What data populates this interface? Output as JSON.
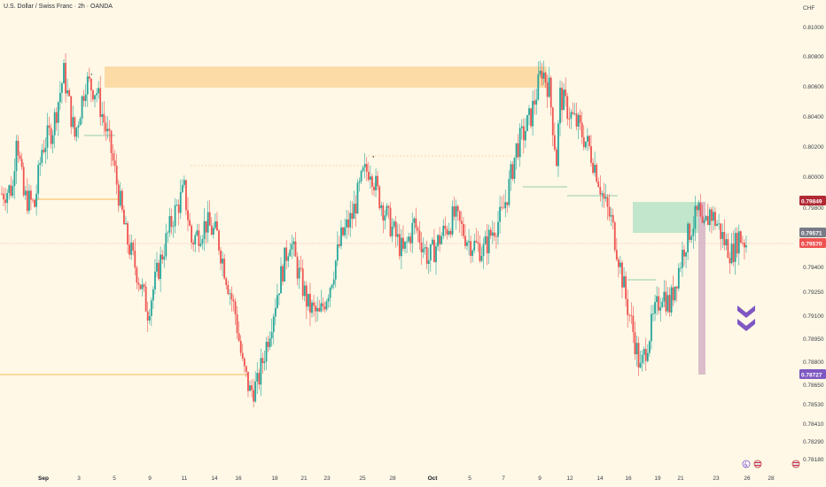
{
  "header": {
    "title": "U.S. Dollar / Swiss Franc · 2h · OANDA",
    "currency": "CHF"
  },
  "chart_data": {
    "type": "candlestick",
    "symbol": "USDCHF",
    "timeframe": "2h",
    "ylim": [
      0.7812,
      0.8112
    ],
    "y_ticks": [
      "0.81000",
      "0.80800",
      "0.80600",
      "0.80400",
      "0.80200",
      "0.80000",
      "0.79800",
      "0.79400",
      "0.79250",
      "0.79100",
      "0.78950",
      "0.78800",
      "0.78650",
      "0.78530",
      "0.78410",
      "0.78290",
      "0.78180"
    ],
    "x_ticks": [
      {
        "label": "Sep",
        "bold": true
      },
      {
        "label": "3"
      },
      {
        "label": "5"
      },
      {
        "label": "9"
      },
      {
        "label": "11"
      },
      {
        "label": "14"
      },
      {
        "label": "16"
      },
      {
        "label": "18"
      },
      {
        "label": "21"
      },
      {
        "label": "23"
      },
      {
        "label": "25"
      },
      {
        "label": "28"
      },
      {
        "label": "Oct",
        "bold": true
      },
      {
        "label": "5"
      },
      {
        "label": "7"
      },
      {
        "label": "9"
      },
      {
        "label": "12"
      },
      {
        "label": "14"
      },
      {
        "label": "16"
      },
      {
        "label": "19"
      },
      {
        "label": "21"
      },
      {
        "label": "23"
      },
      {
        "label": "26"
      },
      {
        "label": "28"
      }
    ],
    "price_badges": [
      {
        "label": "0.79849",
        "color": "#b22833"
      },
      {
        "label": "0.79571",
        "color": "#787b86"
      },
      {
        "label": "0.79570",
        "color": "#ef5350"
      },
      {
        "label": "0.78727",
        "color": "#7e57c2"
      }
    ],
    "price_path": [
      [
        0.799,
        0
      ],
      [
        0.7994,
        3
      ],
      [
        0.8032,
        4
      ],
      [
        0.7988,
        6
      ],
      [
        0.7982,
        9
      ],
      [
        0.802,
        11
      ],
      [
        0.8034,
        14
      ],
      [
        0.807,
        17
      ],
      [
        0.8028,
        20
      ],
      [
        0.8065,
        23
      ],
      [
        0.8058,
        26
      ],
      [
        0.8018,
        30
      ],
      [
        0.7962,
        34
      ],
      [
        0.7938,
        37
      ],
      [
        0.7912,
        40
      ],
      [
        0.795,
        44
      ],
      [
        0.7975,
        47
      ],
      [
        0.7992,
        50
      ],
      [
        0.7958,
        52
      ],
      [
        0.797,
        56
      ],
      [
        0.7962,
        59
      ],
      [
        0.793,
        62
      ],
      [
        0.791,
        64
      ],
      [
        0.7875,
        66
      ],
      [
        0.7858,
        68
      ],
      [
        0.7862,
        70
      ],
      [
        0.7895,
        73
      ],
      [
        0.793,
        76
      ],
      [
        0.796,
        79
      ],
      [
        0.794,
        81
      ],
      [
        0.7915,
        84
      ],
      [
        0.7908,
        87
      ],
      [
        0.793,
        90
      ],
      [
        0.796,
        93
      ],
      [
        0.7975,
        96
      ],
      [
        0.8002,
        99
      ],
      [
        0.8008,
        101
      ],
      [
        0.799,
        103
      ],
      [
        0.7972,
        106
      ],
      [
        0.795,
        110
      ],
      [
        0.797,
        113
      ],
      [
        0.7946,
        117
      ],
      [
        0.796,
        120
      ],
      [
        0.7975,
        124
      ],
      [
        0.7958,
        128
      ],
      [
        0.7952,
        132
      ],
      [
        0.7968,
        135
      ],
      [
        0.7975,
        137
      ],
      [
        0.7995,
        139
      ],
      [
        0.802,
        141
      ],
      [
        0.803,
        143
      ],
      [
        0.8042,
        145
      ],
      [
        0.8062,
        147
      ],
      [
        0.8073,
        148
      ],
      [
        0.806,
        150
      ],
      [
        0.8012,
        152
      ],
      [
        0.8055,
        153
      ],
      [
        0.8042,
        156
      ],
      [
        0.8035,
        158
      ],
      [
        0.802,
        161
      ],
      [
        0.8005,
        163
      ],
      [
        0.7985,
        165
      ],
      [
        0.7972,
        167
      ],
      [
        0.7948,
        169
      ],
      [
        0.792,
        171
      ],
      [
        0.7898,
        173
      ],
      [
        0.7872,
        175
      ],
      [
        0.7892,
        177
      ],
      [
        0.791,
        179
      ],
      [
        0.7925,
        181
      ],
      [
        0.7915,
        183
      ],
      [
        0.7935,
        185
      ],
      [
        0.7955,
        187
      ],
      [
        0.7968,
        189
      ],
      [
        0.7978,
        191
      ],
      [
        0.7962,
        192
      ],
      [
        0.7978,
        194
      ],
      [
        0.797,
        196
      ],
      [
        0.7958,
        198
      ],
      [
        0.795,
        200
      ],
      [
        0.7962,
        202
      ],
      [
        0.7957,
        204
      ]
    ],
    "annotations": {
      "supply_zone": [
        0.806,
        0.8075
      ],
      "demand_zone": [
        0.7964,
        0.7985
      ],
      "target_level": 0.78727
    }
  }
}
